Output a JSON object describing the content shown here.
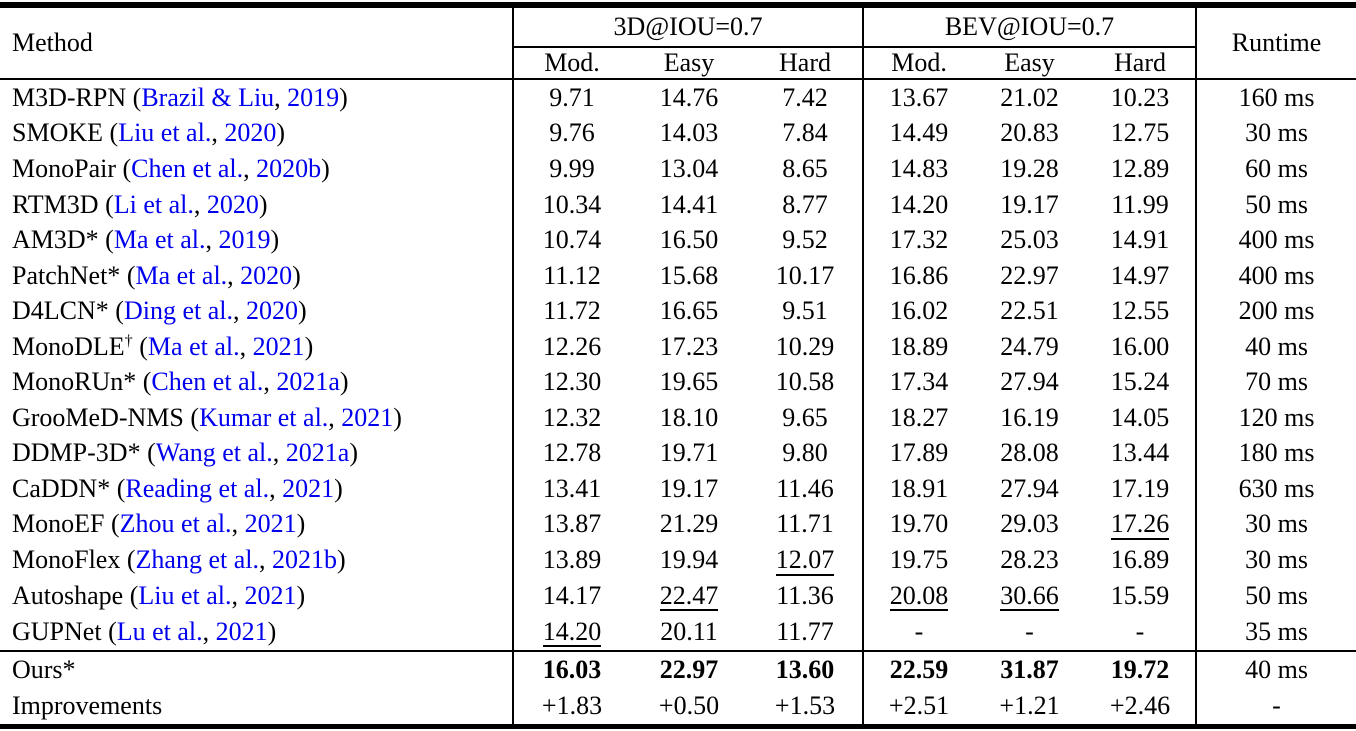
{
  "table": {
    "header": {
      "method": "Method",
      "group1": "3D@IOU=0.7",
      "group2": "BEV@IOU=0.7",
      "runtime": "Runtime",
      "subcols": [
        "Mod.",
        "Easy",
        "Hard",
        "Mod.",
        "Easy",
        "Hard"
      ]
    },
    "link_color": "#0000EE",
    "rows": [
      {
        "name": "M3D-RPN",
        "authors": "Brazil & Liu",
        "year": "2019",
        "cells": [
          "9.71",
          "14.76",
          "7.42",
          "13.67",
          "21.02",
          "10.23"
        ],
        "runtime": "160 ms"
      },
      {
        "name": "SMOKE",
        "authors": "Liu et al.",
        "year": "2020",
        "cells": [
          "9.76",
          "14.03",
          "7.84",
          "14.49",
          "20.83",
          "12.75"
        ],
        "runtime": "30 ms"
      },
      {
        "name": "MonoPair",
        "authors": "Chen et al.",
        "year": "2020b",
        "cells": [
          "9.99",
          "13.04",
          "8.65",
          "14.83",
          "19.28",
          "12.89"
        ],
        "runtime": "60 ms"
      },
      {
        "name": "RTM3D",
        "authors": "Li et al.",
        "year": "2020",
        "cells": [
          "10.34",
          "14.41",
          "8.77",
          "14.20",
          "19.17",
          "11.99"
        ],
        "runtime": "50 ms"
      },
      {
        "name": "AM3D*",
        "authors": "Ma et al.",
        "year": "2019",
        "cells": [
          "10.74",
          "16.50",
          "9.52",
          "17.32",
          "25.03",
          "14.91"
        ],
        "runtime": "400 ms"
      },
      {
        "name": "PatchNet*",
        "authors": "Ma et al.",
        "year": "2020",
        "cells": [
          "11.12",
          "15.68",
          "10.17",
          "16.86",
          "22.97",
          "14.97"
        ],
        "runtime": "400 ms"
      },
      {
        "name": "D4LCN*",
        "authors": "Ding et al.",
        "year": "2020",
        "cells": [
          "11.72",
          "16.65",
          "9.51",
          "16.02",
          "22.51",
          "12.55"
        ],
        "runtime": "200 ms"
      },
      {
        "name": "MonoDLE",
        "sup": "†",
        "authors": "Ma et al.",
        "year": "2021",
        "cells": [
          "12.26",
          "17.23",
          "10.29",
          "18.89",
          "24.79",
          "16.00"
        ],
        "runtime": "40 ms"
      },
      {
        "name": "MonoRUn*",
        "authors": "Chen et al.",
        "year": "2021a",
        "cells": [
          "12.30",
          "19.65",
          "10.58",
          "17.34",
          "27.94",
          "15.24"
        ],
        "runtime": "70 ms"
      },
      {
        "name": "GrooMeD-NMS",
        "authors": "Kumar et al.",
        "year": "2021",
        "cells": [
          "12.32",
          "18.10",
          "9.65",
          "18.27",
          "16.19",
          "14.05"
        ],
        "runtime": "120 ms"
      },
      {
        "name": "DDMP-3D*",
        "authors": "Wang et al.",
        "year": "2021a",
        "cells": [
          "12.78",
          "19.71",
          "9.80",
          "17.89",
          "28.08",
          "13.44"
        ],
        "runtime": "180 ms"
      },
      {
        "name": "CaDDN*",
        "authors": "Reading et al.",
        "year": "2021",
        "cells": [
          "13.41",
          "19.17",
          "11.46",
          "18.91",
          "27.94",
          "17.19"
        ],
        "runtime": "630 ms"
      },
      {
        "name": "MonoEF",
        "authors": "Zhou et al.",
        "year": "2021",
        "cells": [
          "13.87",
          "21.29",
          "11.71",
          "19.70",
          "29.03",
          "17.26"
        ],
        "underline": [
          5
        ],
        "runtime": "30 ms"
      },
      {
        "name": "MonoFlex",
        "authors": "Zhang et al.",
        "year": "2021b",
        "cells": [
          "13.89",
          "19.94",
          "12.07",
          "19.75",
          "28.23",
          "16.89"
        ],
        "underline": [
          2
        ],
        "runtime": "30 ms"
      },
      {
        "name": "Autoshape",
        "authors": "Liu et al.",
        "year": "2021",
        "cells": [
          "14.17",
          "22.47",
          "11.36",
          "20.08",
          "30.66",
          "15.59"
        ],
        "underline": [
          1,
          3,
          4
        ],
        "runtime": "50 ms"
      },
      {
        "name": "GUPNet",
        "authors": "Lu et al.",
        "year": "2021",
        "cells": [
          "14.20",
          "20.11",
          "11.77",
          "-",
          "-",
          "-"
        ],
        "underline": [
          0
        ],
        "runtime": "35 ms",
        "sep_below": true
      },
      {
        "name": "Ours*",
        "cells": [
          "16.03",
          "22.97",
          "13.60",
          "22.59",
          "31.87",
          "19.72"
        ],
        "bold": true,
        "runtime": "40 ms"
      },
      {
        "name": "Improvements",
        "cells": [
          "+1.83",
          "+0.50",
          "+1.53",
          "+2.51",
          "+1.21",
          "+2.46"
        ],
        "runtime": "-"
      }
    ]
  }
}
